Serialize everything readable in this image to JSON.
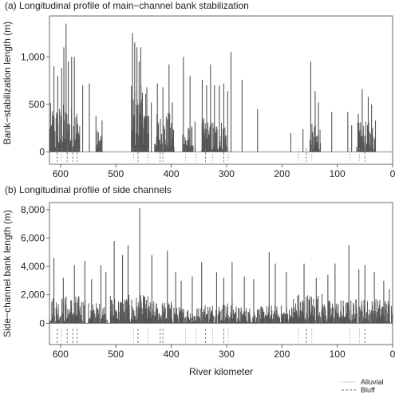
{
  "chart_data": [
    {
      "type": "bar",
      "title": "(a) Longitudinal profile of main−channel bank stabilization",
      "xlabel": "",
      "ylabel": "Bank−stabilization length (m)",
      "xlim": [
        620,
        0
      ],
      "ylim": [
        -130,
        1430
      ],
      "x_ticks": [
        600,
        500,
        400,
        300,
        200,
        100,
        0
      ],
      "y_ticks": [
        0,
        500,
        1000
      ],
      "y_tick_labels": [
        "0",
        "500",
        "1,000"
      ],
      "grid": false,
      "bar_color": "#555555",
      "spikes": [
        {
          "x": 590,
          "y": 1350
        },
        {
          "x": 594,
          "y": 1100
        },
        {
          "x": 586,
          "y": 950
        },
        {
          "x": 580,
          "y": 1000
        },
        {
          "x": 575,
          "y": 1000
        },
        {
          "x": 612,
          "y": 900
        },
        {
          "x": 598,
          "y": 880
        },
        {
          "x": 605,
          "y": 800
        },
        {
          "x": 560,
          "y": 700
        },
        {
          "x": 548,
          "y": 720
        },
        {
          "x": 536,
          "y": 380
        },
        {
          "x": 525,
          "y": 330
        },
        {
          "x": 470,
          "y": 1250
        },
        {
          "x": 466,
          "y": 1150
        },
        {
          "x": 462,
          "y": 1100
        },
        {
          "x": 458,
          "y": 950
        },
        {
          "x": 455,
          "y": 1100
        },
        {
          "x": 452,
          "y": 620
        },
        {
          "x": 444,
          "y": 680
        },
        {
          "x": 436,
          "y": 520
        },
        {
          "x": 425,
          "y": 720
        },
        {
          "x": 415,
          "y": 680
        },
        {
          "x": 404,
          "y": 920
        },
        {
          "x": 398,
          "y": 520
        },
        {
          "x": 378,
          "y": 1000
        },
        {
          "x": 366,
          "y": 800
        },
        {
          "x": 357,
          "y": 320
        },
        {
          "x": 344,
          "y": 760
        },
        {
          "x": 336,
          "y": 700
        },
        {
          "x": 329,
          "y": 920
        },
        {
          "x": 322,
          "y": 700
        },
        {
          "x": 313,
          "y": 700
        },
        {
          "x": 305,
          "y": 720
        },
        {
          "x": 298,
          "y": 640
        },
        {
          "x": 292,
          "y": 1050
        },
        {
          "x": 272,
          "y": 760
        },
        {
          "x": 244,
          "y": 450
        },
        {
          "x": 184,
          "y": 200
        },
        {
          "x": 162,
          "y": 240
        },
        {
          "x": 148,
          "y": 950
        },
        {
          "x": 140,
          "y": 640
        },
        {
          "x": 134,
          "y": 520
        },
        {
          "x": 110,
          "y": 420
        },
        {
          "x": 81,
          "y": 420
        },
        {
          "x": 74,
          "y": 280
        },
        {
          "x": 62,
          "y": 400
        },
        {
          "x": 55,
          "y": 660
        },
        {
          "x": 44,
          "y": 580
        },
        {
          "x": 38,
          "y": 500
        },
        {
          "x": 31,
          "y": 330
        }
      ],
      "dense_regions": [
        {
          "from": 620,
          "to": 565,
          "max": 520
        },
        {
          "from": 535,
          "to": 525,
          "max": 240
        },
        {
          "from": 472,
          "to": 440,
          "max": 700
        },
        {
          "from": 430,
          "to": 395,
          "max": 420
        },
        {
          "from": 380,
          "to": 360,
          "max": 280
        },
        {
          "from": 345,
          "to": 300,
          "max": 360
        },
        {
          "from": 150,
          "to": 130,
          "max": 300
        },
        {
          "from": 65,
          "to": 30,
          "max": 320
        }
      ],
      "reaches": [
        {
          "x": 606,
          "type": "Bluff"
        },
        {
          "x": 598,
          "type": "Alluvial"
        },
        {
          "x": 588,
          "type": "Bluff"
        },
        {
          "x": 578,
          "type": "Bluff"
        },
        {
          "x": 570,
          "type": "Bluff"
        },
        {
          "x": 468,
          "type": "Alluvial"
        },
        {
          "x": 460,
          "type": "Bluff"
        },
        {
          "x": 442,
          "type": "Alluvial"
        },
        {
          "x": 420,
          "type": "Bluff"
        },
        {
          "x": 415,
          "type": "Bluff"
        },
        {
          "x": 374,
          "type": "Alluvial"
        },
        {
          "x": 355,
          "type": "Alluvial"
        },
        {
          "x": 338,
          "type": "Bluff"
        },
        {
          "x": 325,
          "type": "Alluvial"
        },
        {
          "x": 305,
          "type": "Bluff"
        },
        {
          "x": 297,
          "type": "Alluvial"
        },
        {
          "x": 170,
          "type": "Alluvial"
        },
        {
          "x": 156,
          "type": "Bluff"
        },
        {
          "x": 146,
          "type": "Alluvial"
        },
        {
          "x": 77,
          "type": "Alluvial"
        },
        {
          "x": 60,
          "type": "Alluvial"
        },
        {
          "x": 50,
          "type": "Bluff"
        }
      ]
    },
    {
      "type": "bar",
      "title": "(b) Longitudinal profile of side channels",
      "xlabel": "River kilometer",
      "ylabel": "Side−channel bank length (m)",
      "xlim": [
        620,
        0
      ],
      "ylim": [
        -1500,
        8500
      ],
      "x_ticks": [
        600,
        500,
        400,
        300,
        200,
        100,
        0
      ],
      "y_ticks": [
        0,
        2000,
        4000,
        6000,
        8000
      ],
      "y_tick_labels": [
        "0",
        "2,000",
        "4,000",
        "6,000",
        "8,000"
      ],
      "grid": false,
      "bar_color": "#555555",
      "spikes": [
        {
          "x": 457,
          "y": 8100
        },
        {
          "x": 478,
          "y": 5500
        },
        {
          "x": 503,
          "y": 5800
        },
        {
          "x": 612,
          "y": 4600
        },
        {
          "x": 575,
          "y": 4100
        },
        {
          "x": 556,
          "y": 4400
        },
        {
          "x": 527,
          "y": 4100
        },
        {
          "x": 488,
          "y": 4800
        },
        {
          "x": 435,
          "y": 4800
        },
        {
          "x": 407,
          "y": 5100
        },
        {
          "x": 345,
          "y": 4300
        },
        {
          "x": 290,
          "y": 4300
        },
        {
          "x": 223,
          "y": 5000
        },
        {
          "x": 212,
          "y": 4200
        },
        {
          "x": 79,
          "y": 5500
        },
        {
          "x": 160,
          "y": 4200
        },
        {
          "x": 104,
          "y": 4200
        },
        {
          "x": 50,
          "y": 4100
        },
        {
          "x": 595,
          "y": 3200
        },
        {
          "x": 544,
          "y": 3100
        },
        {
          "x": 518,
          "y": 3600
        },
        {
          "x": 392,
          "y": 3600
        },
        {
          "x": 382,
          "y": 3000
        },
        {
          "x": 362,
          "y": 3300
        },
        {
          "x": 318,
          "y": 3600
        },
        {
          "x": 305,
          "y": 3200
        },
        {
          "x": 268,
          "y": 3300
        },
        {
          "x": 251,
          "y": 3100
        },
        {
          "x": 192,
          "y": 3600
        },
        {
          "x": 138,
          "y": 3200
        },
        {
          "x": 117,
          "y": 3400
        },
        {
          "x": 61,
          "y": 3800
        },
        {
          "x": 33,
          "y": 3600
        },
        {
          "x": 16,
          "y": 3000
        },
        {
          "x": 6,
          "y": 2400
        }
      ],
      "dense_regions": [
        {
          "from": 620,
          "to": 555,
          "max": 2000
        },
        {
          "from": 550,
          "to": 515,
          "max": 1500
        },
        {
          "from": 510,
          "to": 440,
          "max": 2000
        },
        {
          "from": 440,
          "to": 395,
          "max": 1600
        },
        {
          "from": 395,
          "to": 345,
          "max": 1200
        },
        {
          "from": 345,
          "to": 280,
          "max": 1500
        },
        {
          "from": 280,
          "to": 230,
          "max": 1200
        },
        {
          "from": 230,
          "to": 180,
          "max": 1300
        },
        {
          "from": 180,
          "to": 125,
          "max": 2200
        },
        {
          "from": 125,
          "to": 70,
          "max": 1700
        },
        {
          "from": 70,
          "to": 0,
          "max": 1800
        }
      ],
      "reaches": [
        {
          "x": 606,
          "type": "Bluff"
        },
        {
          "x": 598,
          "type": "Alluvial"
        },
        {
          "x": 588,
          "type": "Bluff"
        },
        {
          "x": 578,
          "type": "Bluff"
        },
        {
          "x": 570,
          "type": "Bluff"
        },
        {
          "x": 468,
          "type": "Alluvial"
        },
        {
          "x": 460,
          "type": "Bluff"
        },
        {
          "x": 442,
          "type": "Alluvial"
        },
        {
          "x": 420,
          "type": "Bluff"
        },
        {
          "x": 415,
          "type": "Bluff"
        },
        {
          "x": 374,
          "type": "Alluvial"
        },
        {
          "x": 355,
          "type": "Alluvial"
        },
        {
          "x": 338,
          "type": "Bluff"
        },
        {
          "x": 325,
          "type": "Alluvial"
        },
        {
          "x": 305,
          "type": "Bluff"
        },
        {
          "x": 297,
          "type": "Alluvial"
        },
        {
          "x": 170,
          "type": "Alluvial"
        },
        {
          "x": 156,
          "type": "Bluff"
        },
        {
          "x": 146,
          "type": "Alluvial"
        },
        {
          "x": 77,
          "type": "Alluvial"
        },
        {
          "x": 60,
          "type": "Alluvial"
        },
        {
          "x": 50,
          "type": "Bluff"
        }
      ]
    }
  ],
  "legend": {
    "items": [
      {
        "label": "Alluvial",
        "style": "dotted",
        "color": "#999999"
      },
      {
        "label": "Bluff",
        "style": "dashed",
        "color": "#777777"
      }
    ]
  }
}
